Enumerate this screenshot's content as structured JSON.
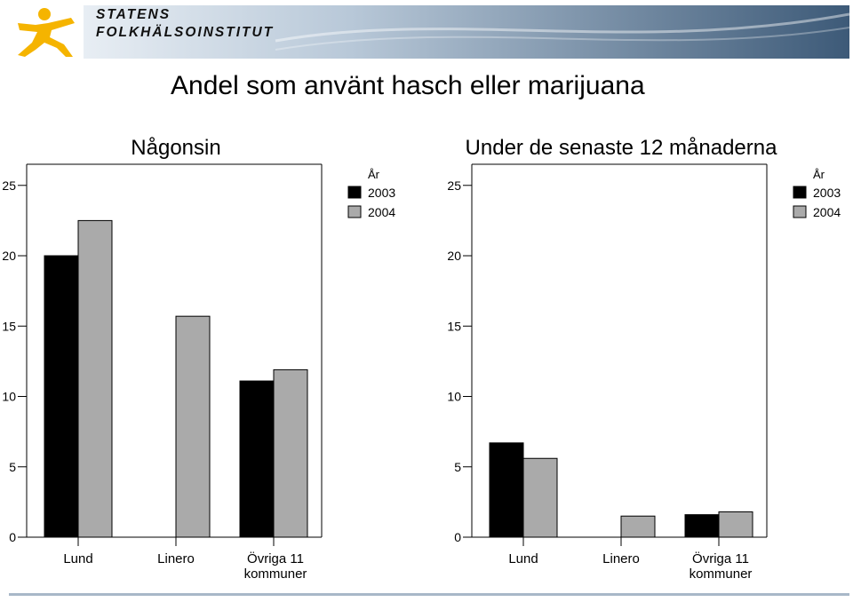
{
  "header": {
    "org_line1": "STATENS",
    "org_line2": "FOLKHÄLSOINSTITUT",
    "logo_icon": "running-figure-icon",
    "colors": {
      "logo": "#f5b400",
      "band_dark": "#3d5a78",
      "band_light": "#d8e2ec"
    }
  },
  "title": "Andel som använt hasch eller marijuana",
  "chart_data": [
    {
      "type": "bar",
      "title": "Någonsin",
      "categories": [
        "Lund",
        "Linero",
        "Övriga 11 kommuner"
      ],
      "category_lines": [
        [
          "Lund"
        ],
        [
          "Linero"
        ],
        [
          "Övriga 11",
          "kommuner"
        ]
      ],
      "series": [
        {
          "name": "2003",
          "color": "#000000",
          "values": [
            20.0,
            null,
            11.1
          ]
        },
        {
          "name": "2004",
          "color": "#aaaaaa",
          "values": [
            22.5,
            15.7,
            11.9
          ]
        }
      ],
      "legend_title": "År",
      "legend_position": "top-right",
      "ylim": [
        0,
        26.5
      ],
      "yticks": [
        0,
        5,
        10,
        15,
        20,
        25
      ],
      "xlabel": "",
      "ylabel": ""
    },
    {
      "type": "bar",
      "title": "Under de senaste 12 månaderna",
      "categories": [
        "Lund",
        "Linero",
        "Övriga 11 kommuner"
      ],
      "category_lines": [
        [
          "Lund"
        ],
        [
          "Linero"
        ],
        [
          "Övriga 11",
          "kommuner"
        ]
      ],
      "series": [
        {
          "name": "2003",
          "color": "#000000",
          "values": [
            6.7,
            null,
            1.6
          ]
        },
        {
          "name": "2004",
          "color": "#aaaaaa",
          "values": [
            5.6,
            1.5,
            1.8
          ]
        }
      ],
      "legend_title": "År",
      "legend_position": "top-right",
      "ylim": [
        0,
        26.5
      ],
      "yticks": [
        0,
        5,
        10,
        15,
        20,
        25
      ],
      "xlabel": "",
      "ylabel": ""
    }
  ]
}
